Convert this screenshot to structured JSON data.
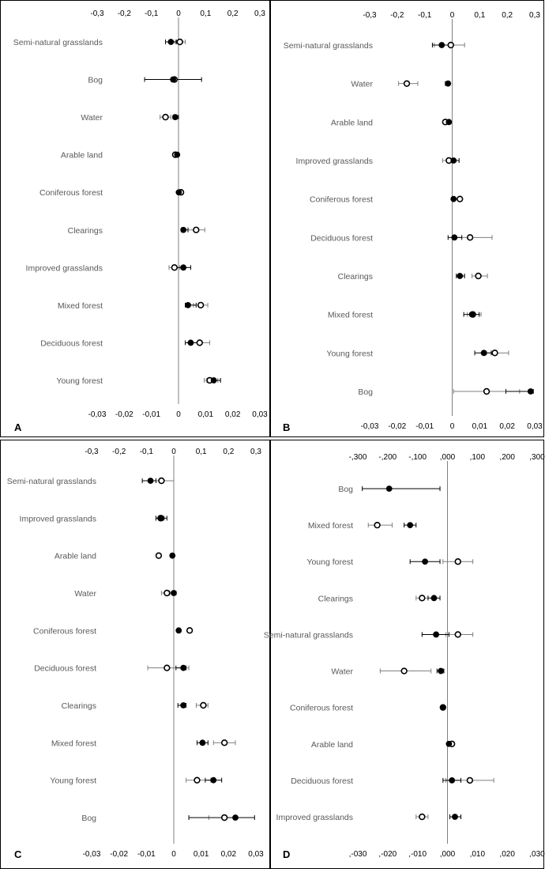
{
  "colors": {
    "open_marker": "#ffffff",
    "filled_marker": "#000000",
    "axis": "#808080",
    "label": "#595959",
    "border": "#000000"
  },
  "chart_data": [
    {
      "type": "scatter",
      "panel": "A",
      "top_ticks": [
        "-0,3",
        "-0,2",
        "-0,1",
        "0",
        "0,1",
        "0,2",
        "0,3"
      ],
      "bottom_ticks": [
        "-0,03",
        "-0,02",
        "-0,01",
        "0",
        "0,01",
        "0,02",
        "0,03"
      ],
      "xlim": [
        -0.03,
        0.03
      ],
      "categories": [
        "Semi-natural grasslands",
        "Bog",
        "Water",
        "Arable land",
        "Coniferous forest",
        "Clearings",
        "Improved grasslands",
        "Mixed forest",
        "Deciduous forest",
        "Young forest"
      ],
      "series": [
        {
          "marker": "open",
          "values": [
            0.0005,
            -0.0015,
            -0.0048,
            -0.0012,
            0.0009,
            0.0065,
            -0.0015,
            0.0082,
            0.0078,
            0.0115
          ],
          "lower": [
            -0.0012,
            null,
            -0.0068,
            null,
            null,
            0.0035,
            -0.0035,
            0.0055,
            0.0045,
            0.0095
          ],
          "upper": [
            0.0025,
            null,
            -0.0028,
            null,
            null,
            0.0097,
            0.0005,
            0.0108,
            0.0115,
            0.0145
          ]
        },
        {
          "marker": "filled",
          "values": [
            -0.0028,
            -0.002,
            -0.0012,
            -0.0005,
            0.0001,
            0.0018,
            0.0018,
            0.0035,
            0.0045,
            0.013
          ],
          "lower": [
            -0.0048,
            -0.0125,
            -0.002,
            null,
            null,
            0.001,
            -0.0012,
            0.0025,
            0.0025,
            0.0105
          ],
          "upper": [
            -0.0008,
            0.0085,
            0.0,
            null,
            null,
            0.0035,
            0.0045,
            0.0065,
            0.0075,
            0.0155
          ]
        }
      ]
    },
    {
      "type": "scatter",
      "panel": "B",
      "top_ticks": [
        "-0,3",
        "-0,2",
        "-0,1",
        "0",
        "0,1",
        "0,2",
        "0,3"
      ],
      "bottom_ticks": [
        "-0,03",
        "-0,02",
        "-0,01",
        "0",
        "0,01",
        "0,02",
        "0,03"
      ],
      "xlim": [
        -0.03,
        0.03
      ],
      "categories": [
        "Semi-natural grasslands",
        "Water",
        "Arable land",
        "Improved grasslands",
        "Coniferous forest",
        "Deciduous forest",
        "Clearings",
        "Mixed forest",
        "Young forest",
        "Bog"
      ],
      "series": [
        {
          "marker": "open",
          "values": [
            -0.0005,
            -0.0165,
            -0.0025,
            -0.0012,
            0.0028,
            0.0065,
            0.0095,
            0.0075,
            0.0155,
            0.0125
          ],
          "lower": [
            -0.0065,
            -0.0195,
            null,
            -0.0035,
            null,
            0.0,
            0.0072,
            0.0055,
            0.0125,
            0.0005
          ],
          "upper": [
            0.0045,
            -0.0125,
            null,
            0.0012,
            null,
            0.0145,
            0.0128,
            0.0105,
            0.0205,
            0.0245
          ]
        },
        {
          "marker": "filled",
          "values": [
            -0.0038,
            -0.0015,
            -0.0012,
            0.0005,
            0.0005,
            0.0008,
            0.0028,
            0.0072,
            0.0115,
            0.0285
          ],
          "lower": [
            -0.0072,
            -0.0025,
            null,
            -0.0005,
            null,
            -0.0015,
            0.0015,
            0.0042,
            0.0082,
            0.0195
          ],
          "upper": [
            -0.0008,
            null,
            null,
            0.0025,
            null,
            0.0035,
            0.0045,
            0.0098,
            0.0142,
            0.0295
          ]
        }
      ]
    },
    {
      "type": "scatter",
      "panel": "C",
      "top_ticks": [
        "-0,3",
        "-0,2",
        "-0,1",
        "0",
        "0,1",
        "0,2",
        "0,3"
      ],
      "bottom_ticks": [
        "-0,03",
        "-0,02",
        "-0,01",
        "0",
        "0,01",
        "0,02",
        "0,03"
      ],
      "xlim": [
        -0.03,
        0.03
      ],
      "categories": [
        "Semi-natural grasslands",
        "Improved grasslands",
        "Arable land",
        "Water",
        "Coniferous forest",
        "Deciduous forest",
        "Clearings",
        "Mixed forest",
        "Young forest",
        "Bog"
      ],
      "series": [
        {
          "marker": "open",
          "values": [
            -0.0045,
            -0.0048,
            -0.0055,
            -0.0025,
            0.0058,
            -0.0025,
            0.0108,
            0.0185,
            0.0085,
            0.0185
          ],
          "lower": [
            -0.0085,
            -0.0065,
            null,
            -0.0045,
            null,
            -0.0095,
            0.0082,
            0.0145,
            0.0045,
            0.0128
          ],
          "upper": [
            0.0,
            -0.0035,
            null,
            0.0,
            null,
            0.0055,
            0.0125,
            0.0225,
            0.0135,
            0.0225
          ]
        },
        {
          "marker": "filled",
          "values": [
            -0.0085,
            -0.0045,
            -0.0005,
            0.0,
            0.0018,
            0.0035,
            0.0035,
            0.0105,
            0.0145,
            0.0225
          ],
          "lower": [
            -0.0115,
            -0.0065,
            null,
            -0.0015,
            null,
            0.0008,
            0.0015,
            0.0085,
            0.0115,
            0.0055
          ],
          "upper": [
            -0.0065,
            -0.0025,
            null,
            0.0008,
            null,
            0.0045,
            0.0045,
            0.0125,
            0.0175,
            0.0295
          ]
        }
      ]
    },
    {
      "type": "scatter",
      "panel": "D",
      "top_ticks": [
        "-,300",
        "-,200",
        "-,100",
        ",000",
        ",100",
        ",200",
        ",300"
      ],
      "bottom_ticks": [
        ",-030",
        ",-020",
        ",-010",
        ",000",
        ",010",
        ",020",
        ",030"
      ],
      "xlim": [
        -0.03,
        0.03
      ],
      "categories": [
        "Bog",
        "Mixed forest",
        "Young forest",
        "Clearings",
        "Semi-natural grasslands",
        "Water",
        "Coniferous forest",
        "Arable land",
        "Deciduous forest",
        "Improved grasslands"
      ],
      "series": [
        {
          "marker": "open",
          "values": [
            null,
            -0.0235,
            0.0035,
            -0.0085,
            0.0035,
            -0.0145,
            -0.0015,
            0.0015,
            0.0075,
            -0.0085
          ],
          "lower": [
            null,
            -0.0265,
            -0.0015,
            -0.0105,
            -0.0005,
            -0.0225,
            null,
            null,
            -0.0005,
            -0.0105
          ],
          "upper": [
            null,
            -0.0185,
            0.0085,
            -0.0065,
            0.0085,
            -0.0055,
            null,
            null,
            0.0155,
            -0.0065
          ]
        },
        {
          "marker": "filled",
          "values": [
            -0.0195,
            -0.0125,
            -0.0075,
            -0.0045,
            -0.0038,
            -0.0022,
            -0.0015,
            0.0005,
            0.0015,
            0.0025
          ],
          "lower": [
            -0.0285,
            -0.0145,
            -0.0125,
            -0.0065,
            -0.0085,
            -0.0035,
            null,
            null,
            -0.0015,
            0.0008
          ],
          "upper": [
            -0.0025,
            -0.0105,
            -0.0025,
            -0.0025,
            0.0005,
            -0.0012,
            null,
            null,
            0.0045,
            0.0045
          ]
        }
      ]
    }
  ]
}
